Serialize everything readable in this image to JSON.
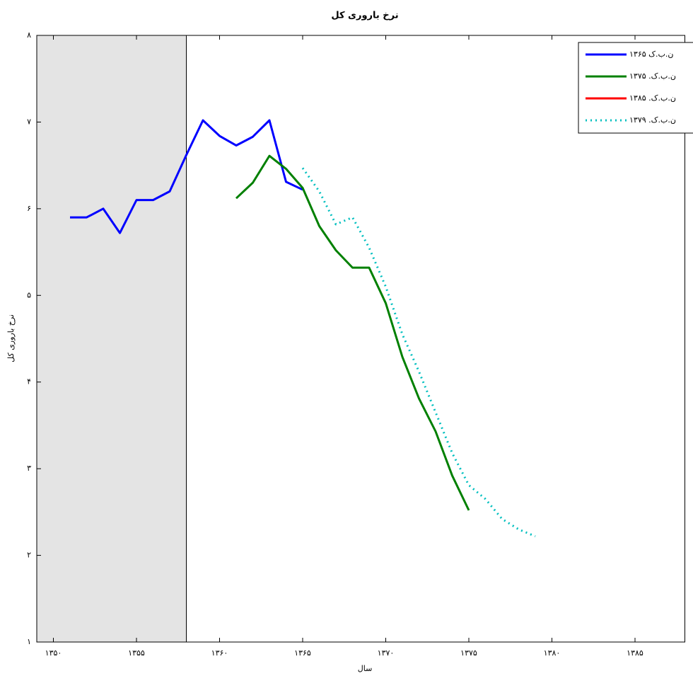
{
  "chart_data": {
    "type": "line",
    "title": "نرخ باروری کل",
    "xlabel": "سال",
    "ylabel": "نرخ باروری کل",
    "xlim": [
      1349,
      1388
    ],
    "ylim": [
      1,
      8
    ],
    "xticks": [
      {
        "value": 1350,
        "label": "۱۳۵۰"
      },
      {
        "value": 1355,
        "label": "۱۳۵۵"
      },
      {
        "value": 1360,
        "label": "۱۳۶۰"
      },
      {
        "value": 1365,
        "label": "۱۳۶۵"
      },
      {
        "value": 1370,
        "label": "۱۳۷۰"
      },
      {
        "value": 1375,
        "label": "۱۳۷۵"
      },
      {
        "value": 1380,
        "label": "۱۳۸۰"
      },
      {
        "value": 1385,
        "label": "۱۳۸۵"
      }
    ],
    "yticks": [
      {
        "value": 1,
        "label": "۱"
      },
      {
        "value": 2,
        "label": "۲"
      },
      {
        "value": 3,
        "label": "۳"
      },
      {
        "value": 4,
        "label": "۴"
      },
      {
        "value": 5,
        "label": "۵"
      },
      {
        "value": 6,
        "label": "۶"
      },
      {
        "value": 7,
        "label": "۷"
      },
      {
        "value": 8,
        "label": "۸"
      }
    ],
    "shaded_xrange": [
      1349,
      1358
    ],
    "shade_color": "#e4e4e4",
    "legend": "upper right",
    "grid": false,
    "series": [
      {
        "name": "ن.ب.ک ۱۳۶۵",
        "color": "#0000ff",
        "linestyle": "solid",
        "x": [
          1351,
          1352,
          1353,
          1354,
          1355,
          1356,
          1357,
          1358,
          1359,
          1360,
          1361,
          1362,
          1363,
          1364,
          1365
        ],
        "values": [
          5.9,
          5.9,
          6.0,
          5.72,
          6.1,
          6.1,
          6.2,
          6.62,
          7.02,
          6.84,
          6.73,
          6.83,
          7.02,
          6.31,
          6.22
        ]
      },
      {
        "name": "ن.ب.ک. ۱۳۷۵",
        "color": "#008000",
        "linestyle": "solid",
        "x": [
          1361,
          1362,
          1363,
          1364,
          1365,
          1366,
          1367,
          1368,
          1369,
          1370,
          1371,
          1372,
          1373,
          1374,
          1375
        ],
        "values": [
          6.12,
          6.3,
          6.61,
          6.46,
          6.24,
          5.8,
          5.52,
          5.32,
          5.32,
          4.91,
          4.29,
          3.81,
          3.43,
          2.92,
          2.52
        ]
      },
      {
        "name": "ن.ب.ک. ۱۳۸۵",
        "color": "#ff0000",
        "linestyle": "solid",
        "x": [],
        "values": []
      },
      {
        "name": "ن.ب.ک. ۱۳۷۹",
        "color": "#00bfbf",
        "linestyle": "dotted",
        "x": [
          1365,
          1366,
          1367,
          1368,
          1369,
          1370,
          1371,
          1372,
          1373,
          1374,
          1375,
          1376,
          1377,
          1378,
          1379
        ],
        "values": [
          6.47,
          6.2,
          5.82,
          5.9,
          5.55,
          5.1,
          4.55,
          4.12,
          3.65,
          3.18,
          2.81,
          2.65,
          2.42,
          2.3,
          2.22
        ]
      }
    ]
  }
}
